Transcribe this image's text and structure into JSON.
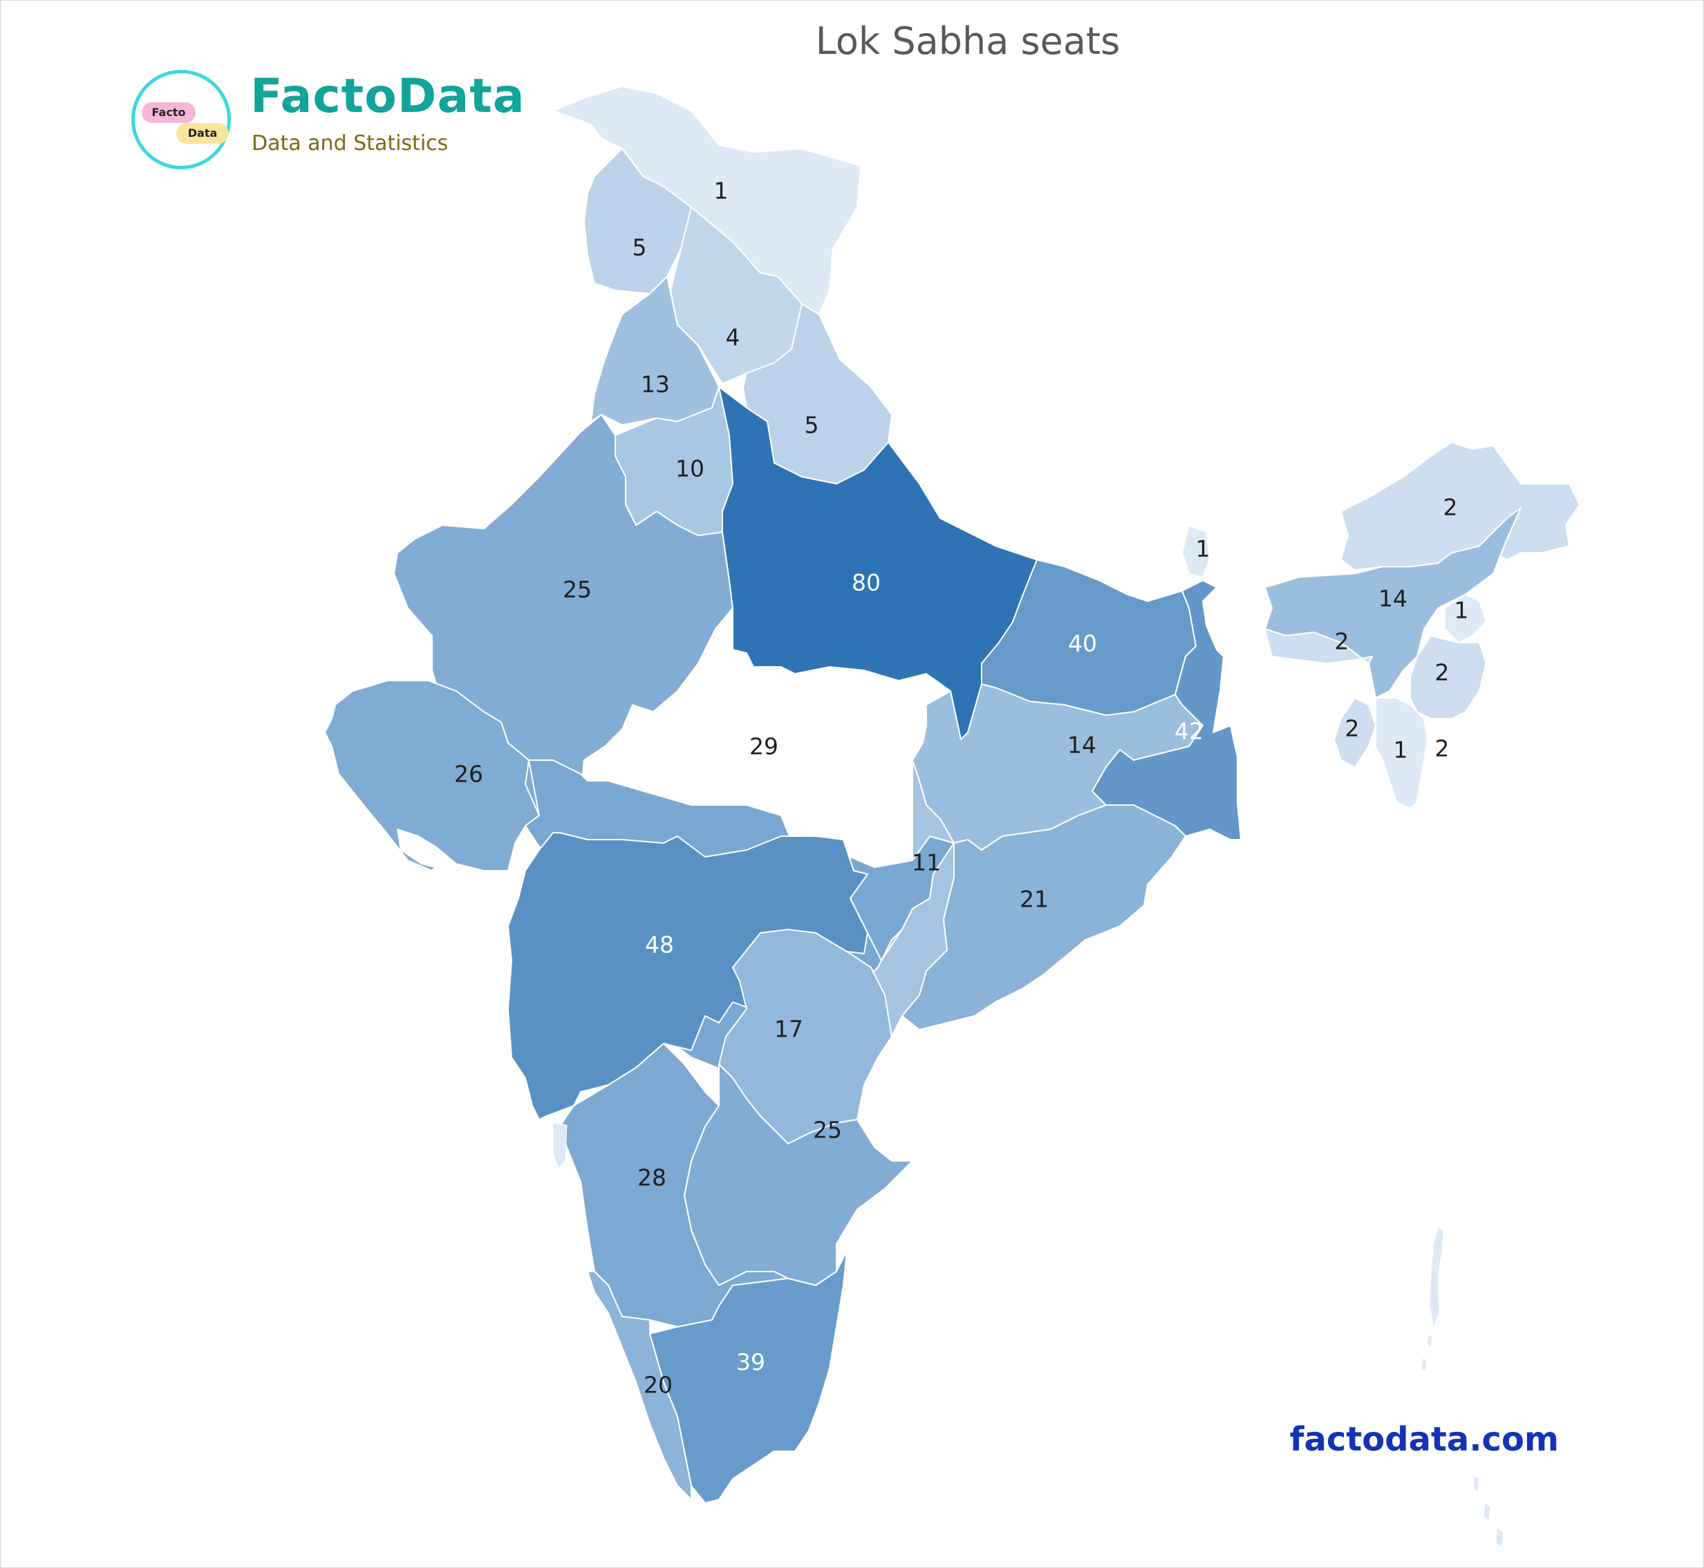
{
  "title": "Lok Sabha seats",
  "logo": {
    "name": "FactoData",
    "tagline": "Data and Statistics",
    "pill_top": "Facto",
    "pill_bottom": "Data"
  },
  "footer": {
    "url": "factodata.com"
  },
  "colors": {
    "scale_low": "#dde9f6",
    "scale_high": "#2e74b5",
    "label_dark": "#1f1f1f",
    "label_light": "#ffffff",
    "brand": "#12a39a",
    "url": "#1233b8"
  },
  "map": {
    "country": "India",
    "metric": "Lok Sabha seats",
    "color_scale": "sequential blue by seat count",
    "regions": [
      {
        "value": 1
      },
      {
        "value": 5
      },
      {
        "value": 4
      },
      {
        "value": 13
      },
      {
        "value": 5
      },
      {
        "value": 10
      },
      {
        "value": 25
      },
      {
        "value": 80
      },
      {
        "value": 40
      },
      {
        "value": 26
      },
      {
        "value": 29
      },
      {
        "value": 14
      },
      {
        "value": 42
      },
      {
        "value": 11
      },
      {
        "value": 21
      },
      {
        "value": 48
      },
      {
        "value": 17
      },
      {
        "value": 25
      },
      {
        "value": 28
      },
      {
        "value": 39
      },
      {
        "value": 20
      },
      {
        "value": 1
      },
      {
        "value": 2
      },
      {
        "value": 14
      },
      {
        "value": 1
      },
      {
        "value": 2
      },
      {
        "value": 2
      },
      {
        "value": 2
      },
      {
        "value": 1
      },
      {
        "value": 2
      }
    ]
  }
}
